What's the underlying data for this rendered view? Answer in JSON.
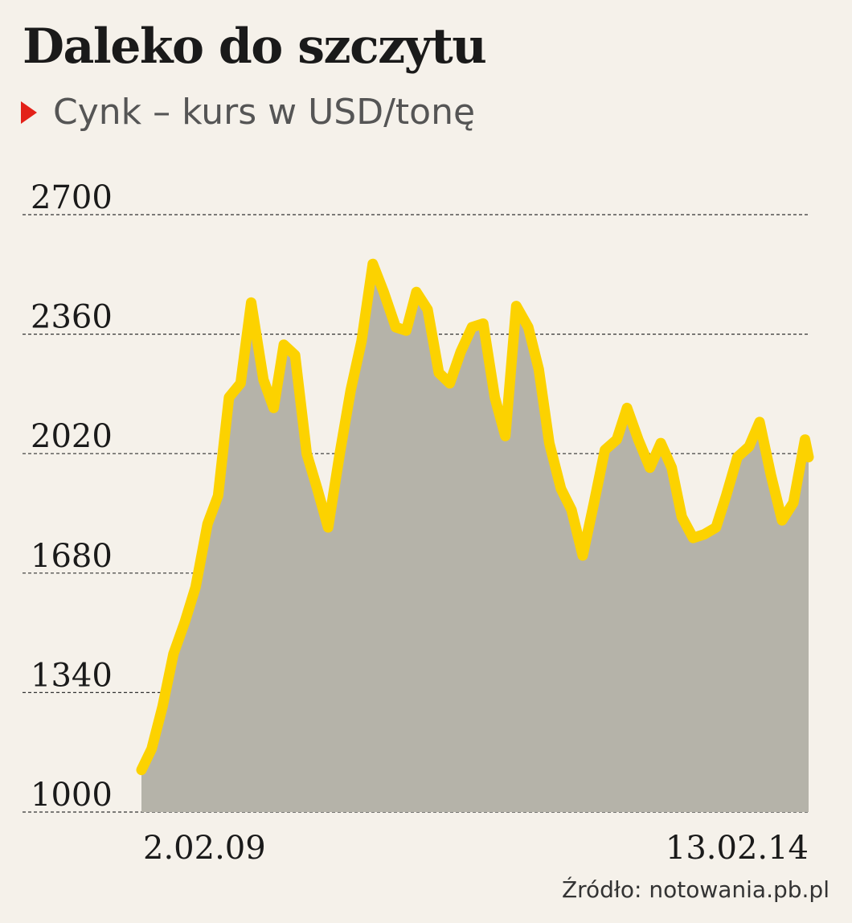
{
  "title": "Daleko do szczytu",
  "subtitle": "Cynk – kurs w USD/tonę",
  "source": "Źródło: notowania.pb.pl",
  "colors": {
    "background": "#f5f1ea",
    "line": "#fcd200",
    "area": "#b5b3a9",
    "marker": "#e32119",
    "grid": "#333333"
  },
  "chart_data": {
    "type": "area",
    "ylim": [
      1000,
      2700
    ],
    "yticks": [
      "2700",
      "2360",
      "2020",
      "1680",
      "1340",
      "1000"
    ],
    "x_labels": [
      "2.02.09",
      "13.02.14"
    ],
    "grid": "horizontal-dashed",
    "series": [
      {
        "x": [
          "2009-02-02",
          "2009-03-02",
          "2009-04-01",
          "2009-05-01",
          "2009-06-01",
          "2009-07-01",
          "2009-08-03",
          "2009-09-01",
          "2009-10-01",
          "2009-11-02",
          "2009-12-01",
          "2010-01-04",
          "2010-02-01",
          "2010-03-01",
          "2010-04-01",
          "2010-05-03",
          "2010-06-01",
          "2010-07-01",
          "2010-08-02",
          "2010-09-01",
          "2010-10-01",
          "2010-11-01",
          "2010-12-01",
          "2011-01-03",
          "2011-02-01",
          "2011-03-01",
          "2011-04-01",
          "2011-05-02",
          "2011-06-01",
          "2011-07-01",
          "2011-08-01",
          "2011-09-01",
          "2011-10-03",
          "2011-11-01",
          "2011-12-01",
          "2012-01-03",
          "2012-02-01",
          "2012-03-01",
          "2012-04-02",
          "2012-05-01",
          "2012-06-01",
          "2012-07-02",
          "2012-08-01",
          "2012-09-03",
          "2012-10-01",
          "2012-11-01",
          "2012-12-03",
          "2013-01-02",
          "2013-02-01",
          "2013-03-01",
          "2013-04-01",
          "2013-05-01",
          "2013-06-03",
          "2013-07-01",
          "2013-08-01",
          "2013-09-02",
          "2013-10-01",
          "2013-11-01",
          "2013-12-02",
          "2014-01-02",
          "2014-02-03",
          "2014-02-13"
        ],
        "y": [
          1120,
          1180,
          1300,
          1450,
          1540,
          1640,
          1820,
          1900,
          2180,
          2220,
          2450,
          2230,
          2150,
          2330,
          2300,
          2020,
          1920,
          1810,
          2020,
          2200,
          2340,
          2560,
          2480,
          2380,
          2370,
          2480,
          2430,
          2250,
          2220,
          2310,
          2380,
          2390,
          2180,
          2070,
          2440,
          2380,
          2260,
          2050,
          1920,
          1860,
          1730,
          1880,
          2030,
          2060,
          2150,
          2060,
          1980,
          2050,
          1980,
          1840,
          1780,
          1790,
          1810,
          1900,
          2010,
          2040,
          2110,
          1960,
          1830,
          1880,
          2060,
          2010
        ]
      }
    ]
  }
}
